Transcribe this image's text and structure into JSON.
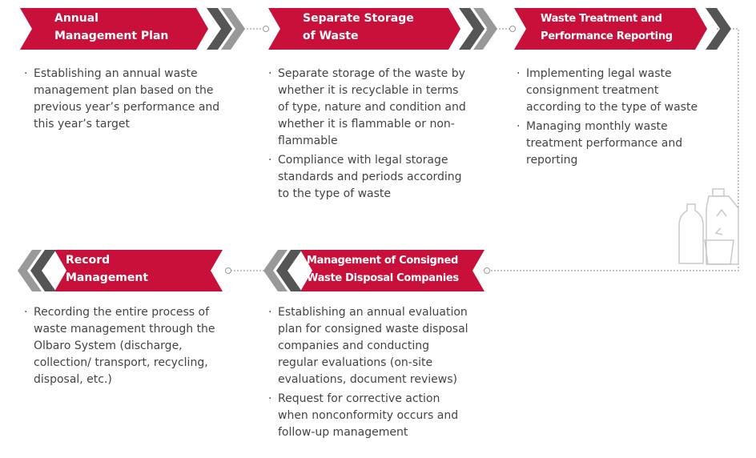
{
  "steps": [
    {
      "title": [
        "Annual",
        "Management Plan"
      ],
      "bullets": [
        "Establishing an annual waste management plan based on the previous year’s performance and this year’s target"
      ]
    },
    {
      "title": [
        "Separate Storage",
        "of Waste"
      ],
      "bullets": [
        "Separate storage of the waste by whether it is recyclable in terms of type, nature and condition and whether it is flammable or non-flammable",
        "Compliance with legal storage standards and periods according to the type of waste"
      ]
    },
    {
      "title": [
        "Waste Treatment and",
        "Performance Reporting"
      ],
      "bullets": [
        "Implementing legal waste consignment treatment according to the type of waste",
        "Managing monthly waste treatment performance and reporting"
      ]
    },
    {
      "title": [
        "Management of Consigned",
        "Waste Disposal Companies"
      ],
      "bullets": [
        "Establishing an annual evaluation plan for consigned waste disposal companies and conducting regular evaluations (on-site evaluations, document reviews)",
        "Request for corrective action when nonconformity occurs and follow-up management"
      ]
    },
    {
      "title": [
        "Record",
        "Management"
      ],
      "bullets": [
        "Recording the entire process of waste management through the Olbaro System (discharge, collection/ transport, recycling, disposal, etc.)"
      ]
    }
  ]
}
